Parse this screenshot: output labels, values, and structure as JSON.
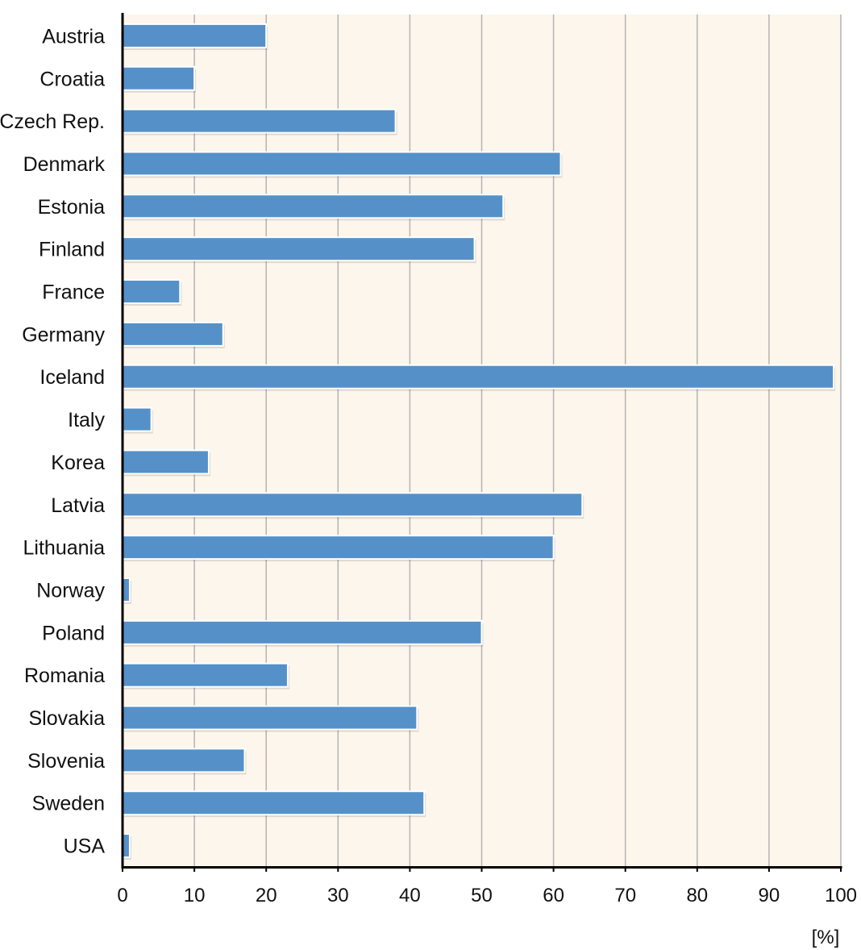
{
  "chart_data": {
    "type": "bar",
    "orientation": "horizontal",
    "categories": [
      "Austria",
      "Croatia",
      "Czech Rep.",
      "Denmark",
      "Estonia",
      "Finland",
      "France",
      "Germany",
      "Iceland",
      "Italy",
      "Korea",
      "Latvia",
      "Lithuania",
      "Norway",
      "Poland",
      "Romania",
      "Slovakia",
      "Slovenia",
      "Sweden",
      "USA"
    ],
    "values": [
      20,
      10,
      38,
      61,
      53,
      49,
      8,
      14,
      99,
      4,
      12,
      64,
      60,
      1,
      50,
      23,
      41,
      17,
      42,
      1
    ],
    "title": "",
    "xlabel": "[%]",
    "ylabel": "",
    "xlim": [
      0,
      100
    ],
    "xticks": [
      "0",
      "10",
      "20",
      "30",
      "40",
      "50",
      "60",
      "70",
      "80",
      "90",
      "100"
    ],
    "grid": true,
    "colors": {
      "bar": "#5591c8",
      "bar_outline": "#ffffff",
      "plot_background": "#fdf6ec",
      "gridline": "#b4b4b4",
      "axis": "#000000"
    }
  }
}
